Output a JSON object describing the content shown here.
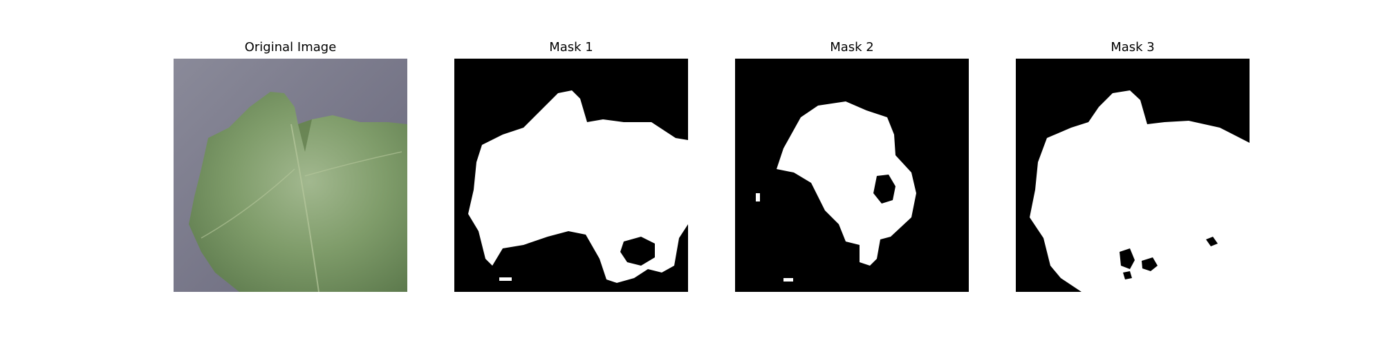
{
  "panels": [
    {
      "title": "Original Image",
      "content": "leaf-photo"
    },
    {
      "title": "Mask 1",
      "content": "binary-mask"
    },
    {
      "title": "Mask 2",
      "content": "binary-mask"
    },
    {
      "title": "Mask 3",
      "content": "binary-mask"
    }
  ],
  "colors": {
    "background": "#ffffff",
    "mask_foreground": "#ffffff",
    "mask_background": "#000000",
    "surface": "#7d7c8a",
    "leaf_dark": "#5f7f4f",
    "leaf_mid": "#7a9a66",
    "leaf_light": "#9db48a"
  }
}
